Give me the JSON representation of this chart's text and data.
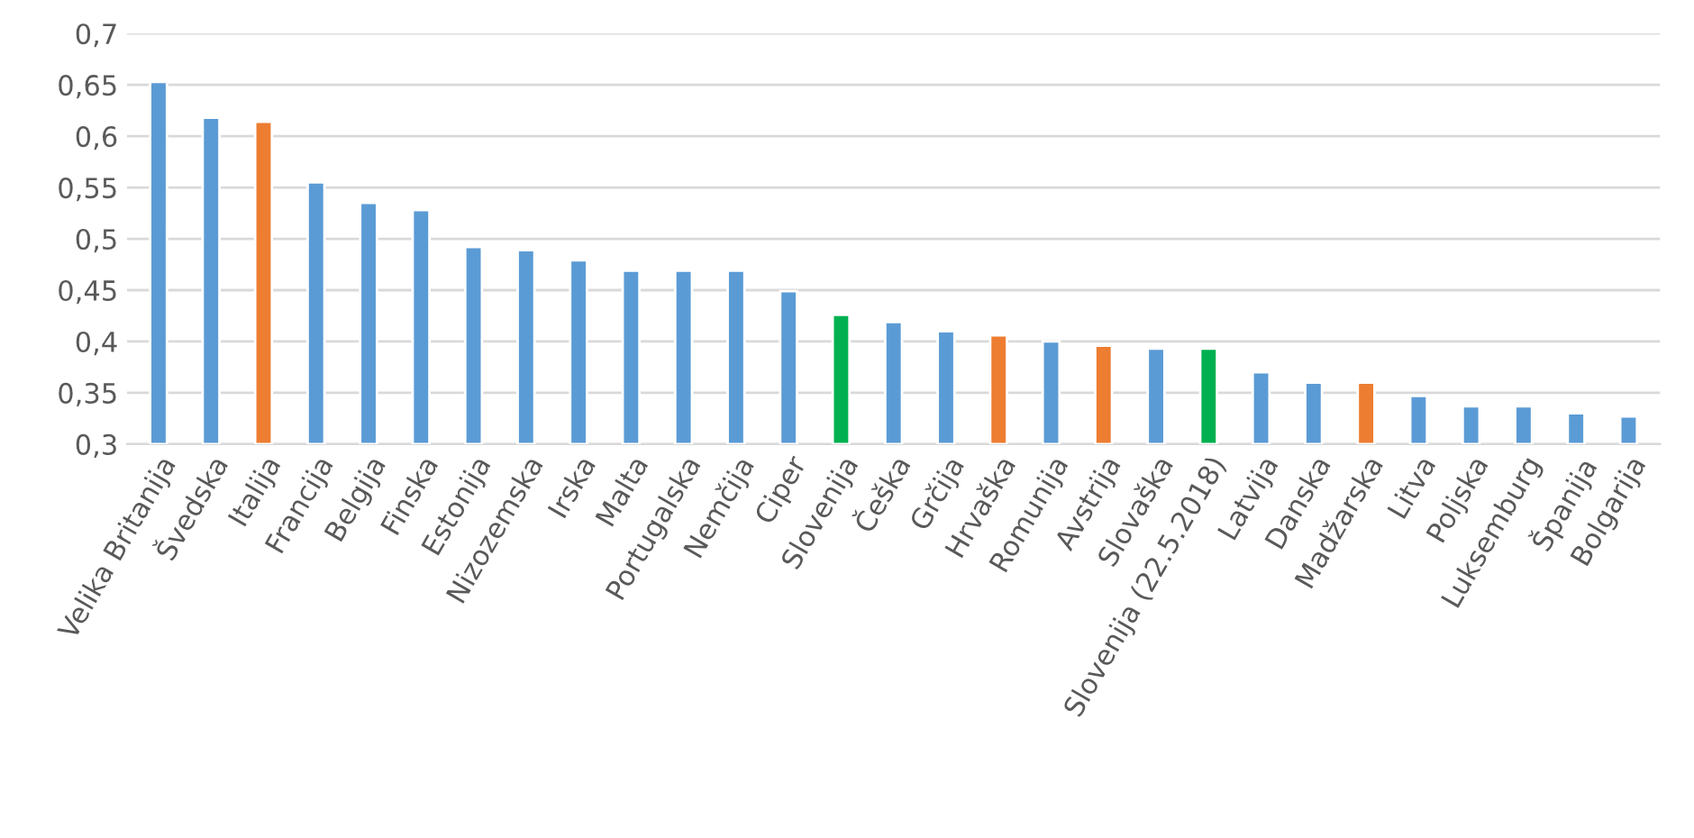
{
  "chart_data": {
    "type": "bar",
    "categories": [
      "Velika Britanija",
      "Švedska",
      "Italija",
      "Francija",
      "Belgija",
      "Finska",
      "Estonija",
      "Nizozemska",
      "Irska",
      "Malta",
      "Portugalska",
      "Nemčija",
      "Ciper",
      "Slovenija",
      "Češka",
      "Grčija",
      "Hrvaška",
      "Romunija",
      "Avstrija",
      "Slovaška",
      "Slovenija (22.5.2018)",
      "Latvija",
      "Danska",
      "Madžarska",
      "Litva",
      "Poljska",
      "Luksemburg",
      "Španija",
      "Bolgarija"
    ],
    "values": [
      0.653,
      0.618,
      0.614,
      0.555,
      0.535,
      0.528,
      0.492,
      0.489,
      0.479,
      0.469,
      0.469,
      0.469,
      0.449,
      0.426,
      0.419,
      0.41,
      0.406,
      0.4,
      0.396,
      0.393,
      0.393,
      0.37,
      0.36,
      0.36,
      0.347,
      0.337,
      0.337,
      0.33,
      0.327
    ],
    "colors": [
      "#5b9bd5",
      "#5b9bd5",
      "#ed7d31",
      "#5b9bd5",
      "#5b9bd5",
      "#5b9bd5",
      "#5b9bd5",
      "#5b9bd5",
      "#5b9bd5",
      "#5b9bd5",
      "#5b9bd5",
      "#5b9bd5",
      "#5b9bd5",
      "#00b050",
      "#5b9bd5",
      "#5b9bd5",
      "#ed7d31",
      "#5b9bd5",
      "#ed7d31",
      "#5b9bd5",
      "#00b050",
      "#5b9bd5",
      "#5b9bd5",
      "#ed7d31",
      "#5b9bd5",
      "#5b9bd5",
      "#5b9bd5",
      "#5b9bd5",
      "#5b9bd5"
    ],
    "ylim": [
      0.3,
      0.7
    ],
    "yticks": [
      {
        "value": 0.3,
        "label": "0,3"
      },
      {
        "value": 0.35,
        "label": "0,35"
      },
      {
        "value": 0.4,
        "label": "0,4"
      },
      {
        "value": 0.45,
        "label": "0,45"
      },
      {
        "value": 0.5,
        "label": "0,5"
      },
      {
        "value": 0.55,
        "label": "0,55"
      },
      {
        "value": 0.6,
        "label": "0,6"
      },
      {
        "value": 0.65,
        "label": "0,65"
      },
      {
        "value": 0.7,
        "label": "0,7"
      }
    ],
    "grid": "y"
  }
}
